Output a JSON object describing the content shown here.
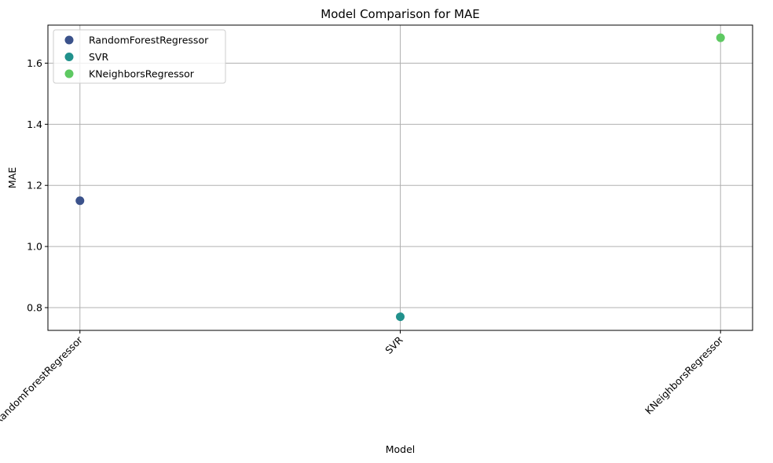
{
  "chart_data": {
    "type": "scatter",
    "title": "Model Comparison for MAE",
    "xlabel": "Model",
    "ylabel": "MAE",
    "categories": [
      "RandomForestRegressor",
      "SVR",
      "KNeighborsRegressor"
    ],
    "series": [
      {
        "name": "RandomForestRegressor",
        "category": "RandomForestRegressor",
        "value": 1.15,
        "color": "#3b528b"
      },
      {
        "name": "SVR",
        "category": "SVR",
        "value": 0.77,
        "color": "#21918c"
      },
      {
        "name": "KNeighborsRegressor",
        "category": "KNeighborsRegressor",
        "value": 1.683,
        "color": "#5ec962"
      }
    ],
    "ylim": [
      0.7255,
      1.7245
    ],
    "yticks": [
      0.8,
      1.0,
      1.2,
      1.4,
      1.6
    ],
    "ytick_labels": [
      "0.8",
      "1.0",
      "1.2",
      "1.4",
      "1.6"
    ],
    "grid": true,
    "legend": "upper-left",
    "x_tick_rotation": -45
  }
}
